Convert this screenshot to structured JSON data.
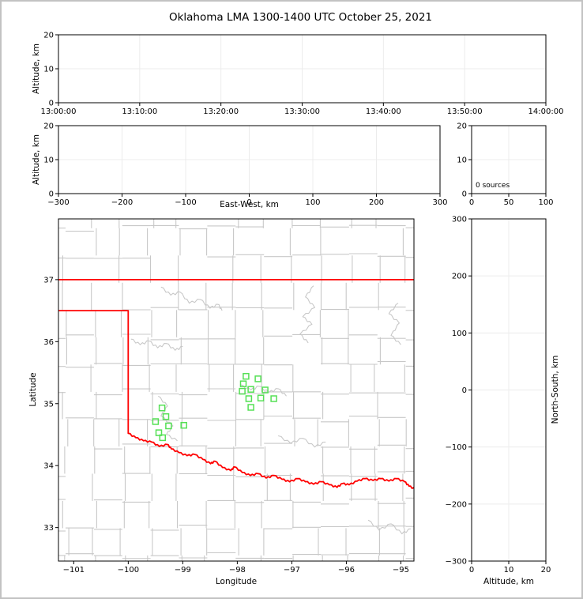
{
  "title": "Oklahoma LMA 1300-1400 UTC October 25, 2021",
  "colors": {
    "axis": "#000000",
    "grid": "#ececec",
    "county_lines": "#c8c8c8",
    "state_border": "#ff0000",
    "stations": "#55e055",
    "frame": "#c2c2c2",
    "background": "#ffffff"
  },
  "chart_data": [
    {
      "id": "altitude_vs_time",
      "type": "scatter",
      "title": "Oklahoma LMA 1300-1400 UTC October 25, 2021",
      "xlabel": "",
      "ylabel": "Altitude, km",
      "x_ticks": [
        "13:00:00",
        "13:10:00",
        "13:20:00",
        "13:30:00",
        "13:40:00",
        "13:50:00",
        "14:00:00"
      ],
      "ylim": [
        0,
        20
      ],
      "y_ticks": [
        0,
        10,
        20
      ],
      "points": []
    },
    {
      "id": "altitude_vs_east_west",
      "type": "scatter",
      "xlabel": "East-West, km",
      "ylabel": "Altitude, km",
      "xlim": [
        -300,
        300
      ],
      "x_ticks": [
        -300,
        -200,
        -100,
        0,
        100,
        200,
        300
      ],
      "ylim": [
        0,
        20
      ],
      "y_ticks": [
        0,
        10,
        20
      ],
      "points": []
    },
    {
      "id": "source_count_histogram",
      "type": "line",
      "annotation": "0 sources",
      "xlim": [
        0,
        100
      ],
      "x_ticks": [
        0,
        50,
        100
      ],
      "ylim": [
        0,
        20
      ],
      "y_ticks": [
        0,
        10,
        20
      ],
      "points": []
    },
    {
      "id": "plan_view_map",
      "type": "scatter",
      "xlabel": "Longitude",
      "ylabel": "Latitude",
      "xlim": [
        -101.28,
        -94.76
      ],
      "x_ticks": [
        -101,
        -100,
        -99,
        -98,
        -97,
        -96,
        -95
      ],
      "ylim": [
        32.46,
        37.98
      ],
      "y_ticks": [
        33,
        34,
        35,
        36,
        37
      ],
      "points": [],
      "stations": [
        [
          -97.84,
          35.44
        ],
        [
          -97.62,
          35.4
        ],
        [
          -97.89,
          35.32
        ],
        [
          -97.75,
          35.23
        ],
        [
          -97.91,
          35.2
        ],
        [
          -97.49,
          35.22
        ],
        [
          -97.79,
          35.08
        ],
        [
          -97.57,
          35.09
        ],
        [
          -97.33,
          35.08
        ],
        [
          -97.75,
          34.94
        ],
        [
          -99.38,
          34.93
        ],
        [
          -99.31,
          34.79
        ],
        [
          -99.5,
          34.71
        ],
        [
          -99.26,
          34.64
        ],
        [
          -98.98,
          34.65
        ],
        [
          -99.44,
          34.53
        ],
        [
          -99.37,
          34.45
        ]
      ],
      "state_border": {
        "kansas_line_lat": 37.0,
        "panhandle_south_lat": 36.5,
        "texas_meridian_lon": -100.0,
        "meridian_south_lat": 34.52,
        "red_river": [
          [
            -100.0,
            34.52
          ],
          [
            -99.86,
            34.45
          ],
          [
            -99.72,
            34.4
          ],
          [
            -99.57,
            34.38
          ],
          [
            -99.43,
            34.31
          ],
          [
            -99.28,
            34.34
          ],
          [
            -99.21,
            34.27
          ],
          [
            -99.07,
            34.21
          ],
          [
            -98.92,
            34.16
          ],
          [
            -98.78,
            34.18
          ],
          [
            -98.63,
            34.1
          ],
          [
            -98.49,
            34.03
          ],
          [
            -98.41,
            34.07
          ],
          [
            -98.27,
            33.97
          ],
          [
            -98.12,
            33.92
          ],
          [
            -98.05,
            33.98
          ],
          [
            -97.91,
            33.89
          ],
          [
            -97.76,
            33.84
          ],
          [
            -97.62,
            33.87
          ],
          [
            -97.47,
            33.8
          ],
          [
            -97.33,
            33.84
          ],
          [
            -97.18,
            33.78
          ],
          [
            -97.04,
            33.74
          ],
          [
            -96.89,
            33.79
          ],
          [
            -96.75,
            33.74
          ],
          [
            -96.6,
            33.7
          ],
          [
            -96.46,
            33.74
          ],
          [
            -96.31,
            33.69
          ],
          [
            -96.17,
            33.65
          ],
          [
            -96.07,
            33.71
          ],
          [
            -95.95,
            33.69
          ],
          [
            -95.8,
            33.75
          ],
          [
            -95.66,
            33.79
          ],
          [
            -95.51,
            33.76
          ],
          [
            -95.37,
            33.79
          ],
          [
            -95.22,
            33.75
          ],
          [
            -95.08,
            33.79
          ],
          [
            -94.93,
            33.74
          ],
          [
            -94.85,
            33.67
          ],
          [
            -94.74,
            33.62
          ]
        ]
      },
      "rivers": [
        [
          [
            -99.95,
            36.04
          ],
          [
            -99.78,
            35.95
          ],
          [
            -99.62,
            36.01
          ],
          [
            -99.46,
            35.9
          ],
          [
            -99.3,
            35.97
          ],
          [
            -99.14,
            35.86
          ],
          [
            -99.0,
            35.92
          ]
        ],
        [
          [
            -99.4,
            36.88
          ],
          [
            -99.22,
            36.75
          ],
          [
            -99.05,
            36.8
          ],
          [
            -98.88,
            36.62
          ],
          [
            -98.68,
            36.68
          ],
          [
            -98.5,
            36.54
          ],
          [
            -98.35,
            36.6
          ],
          [
            -98.28,
            36.5
          ]
        ],
        [
          [
            -96.6,
            36.9
          ],
          [
            -96.75,
            36.72
          ],
          [
            -96.58,
            36.55
          ],
          [
            -96.8,
            36.4
          ],
          [
            -96.63,
            36.28
          ],
          [
            -96.85,
            36.12
          ],
          [
            -96.7,
            35.98
          ]
        ],
        [
          [
            -95.05,
            36.62
          ],
          [
            -95.22,
            36.45
          ],
          [
            -95.03,
            36.3
          ],
          [
            -95.18,
            36.1
          ],
          [
            -95.0,
            35.95
          ]
        ],
        [
          [
            -99.45,
            35.12
          ],
          [
            -99.28,
            34.96
          ],
          [
            -99.4,
            34.8
          ],
          [
            -99.18,
            34.64
          ],
          [
            -99.3,
            34.5
          ],
          [
            -99.1,
            34.4
          ]
        ],
        [
          [
            -97.95,
            35.3
          ],
          [
            -97.75,
            35.22
          ],
          [
            -97.6,
            35.28
          ],
          [
            -97.42,
            35.18
          ],
          [
            -97.25,
            35.24
          ],
          [
            -97.1,
            35.12
          ]
        ],
        [
          [
            -97.25,
            34.48
          ],
          [
            -97.02,
            34.36
          ],
          [
            -96.8,
            34.44
          ],
          [
            -96.58,
            34.3
          ],
          [
            -96.38,
            34.38
          ]
        ],
        [
          [
            -95.6,
            33.12
          ],
          [
            -95.4,
            32.96
          ],
          [
            -95.18,
            33.06
          ],
          [
            -94.98,
            32.9
          ],
          [
            -94.82,
            32.98
          ]
        ]
      ]
    },
    {
      "id": "altitude_vs_north_south",
      "type": "scatter",
      "xlabel": "Altitude, km",
      "ylabel": "North-South, km",
      "xlim": [
        0,
        20
      ],
      "x_ticks": [
        0,
        10,
        20
      ],
      "ylim": [
        -300,
        300
      ],
      "y_ticks": [
        300,
        200,
        100,
        0,
        -100,
        -200,
        -300
      ],
      "points": []
    }
  ]
}
